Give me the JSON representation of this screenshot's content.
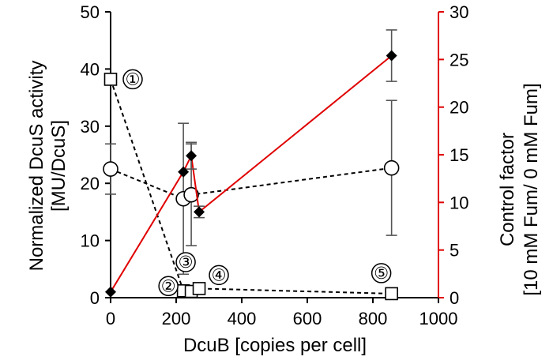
{
  "chart_data": {
    "type": "scatter",
    "title": "",
    "xlabel": "DcuB [copies per cell]",
    "ylabel_left_line1": "Normalized DcuS activity",
    "ylabel_left_line2": "[MU/DcuS]",
    "ylabel_right_line1": "Control factor",
    "ylabel_right_line2": "[10 mM Fum/ 0 mM Fum]",
    "xlim": [
      0,
      1000
    ],
    "ylim_left": [
      0,
      50
    ],
    "ylim_right": [
      0,
      30
    ],
    "x_ticks": [
      0,
      200,
      400,
      600,
      800,
      1000
    ],
    "y_left_ticks": [
      0,
      10,
      20,
      30,
      40,
      50
    ],
    "y_right_ticks": [
      0,
      5,
      10,
      15,
      20,
      25,
      30
    ],
    "grid": false,
    "colors": {
      "axis": "#000000",
      "right_axis": "#e00000",
      "control_factor_line": "#e00000",
      "dashed_series": "#000000"
    },
    "series": [
      {
        "key": "squares",
        "marker": "open-square",
        "line": "dashed",
        "axis": "left",
        "x": [
          0,
          222,
          246,
          270,
          857
        ],
        "y": [
          38.2,
          1.2,
          1.1,
          1.6,
          0.7
        ],
        "err": [
          0,
          0,
          0,
          0,
          0
        ]
      },
      {
        "key": "circles",
        "marker": "open-circle",
        "line": "dashed",
        "axis": "left",
        "x": [
          0,
          222,
          246,
          857
        ],
        "y": [
          22.5,
          17.3,
          18.0,
          22.7
        ],
        "err": [
          4.4,
          13.2,
          8.9,
          11.8
        ]
      },
      {
        "key": "diamonds",
        "marker": "filled-diamond",
        "line": "solid-red",
        "axis": "right",
        "x": [
          0,
          222,
          246,
          270,
          857
        ],
        "y": [
          0.6,
          13.2,
          14.9,
          9.0,
          25.4
        ],
        "err": [
          0,
          0,
          1.4,
          0.6,
          2.7
        ]
      }
    ],
    "annotations": [
      {
        "text": "①",
        "x": 0,
        "y": 38.2
      },
      {
        "text": "②",
        "x": 222,
        "y": 1.2
      },
      {
        "text": "③",
        "x": 246,
        "y": 1.1
      },
      {
        "text": "④",
        "x": 270,
        "y": 1.6
      },
      {
        "text": "⑤",
        "x": 857,
        "y": 0.7
      }
    ]
  }
}
